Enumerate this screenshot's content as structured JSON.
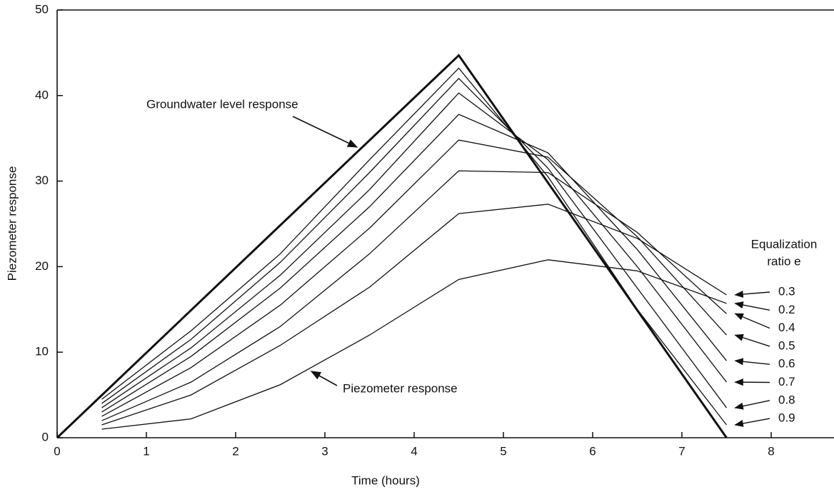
{
  "chart_data": {
    "type": "line",
    "x_label": "Time (hours)",
    "y_label": "Piezometer response",
    "xlim": [
      0,
      8.7
    ],
    "ylim": [
      0,
      50
    ],
    "xticks": [
      0,
      1,
      2,
      3,
      4,
      5,
      6,
      7,
      8
    ],
    "yticks": [
      0,
      10,
      20,
      30,
      40,
      50
    ],
    "grid": false,
    "reference": {
      "name": "Groundwater level response",
      "color": "#111111",
      "x": [
        0,
        4.5,
        7.5
      ],
      "values": [
        0,
        44.7,
        0
      ]
    },
    "annotation": "Piezometer response",
    "legend_title": [
      "Equalization",
      "ratio e"
    ],
    "x": [
      0.5,
      1.5,
      2.5,
      3.5,
      4.5,
      5.5,
      6.5,
      7.5
    ],
    "series": [
      {
        "name": "0.3",
        "color": "#111111",
        "values": [
          1.5,
          5,
          10.8,
          17.6,
          26.2,
          27.3,
          23.3,
          16.7
        ]
      },
      {
        "name": "0.2",
        "color": "#111111",
        "values": [
          1,
          2.2,
          6.2,
          12,
          18.5,
          20.8,
          19.5,
          15.7
        ]
      },
      {
        "name": "0.4",
        "color": "#111111",
        "values": [
          2,
          6.5,
          13,
          21.5,
          31.2,
          31,
          24,
          14.5
        ]
      },
      {
        "name": "0.5",
        "color": "#111111",
        "values": [
          2.5,
          8.2,
          15.5,
          24.5,
          34.8,
          32.8,
          23.5,
          12
        ]
      },
      {
        "name": "0.6",
        "color": "#111111",
        "values": [
          3,
          9.5,
          17.5,
          27,
          37.8,
          33.3,
          22,
          9
        ]
      },
      {
        "name": "0.7",
        "color": "#111111",
        "values": [
          3.5,
          10.5,
          19,
          29,
          40.3,
          32.5,
          20,
          6.5
        ]
      },
      {
        "name": "0.8",
        "color": "#111111",
        "values": [
          4,
          11.5,
          20.5,
          31,
          42,
          31.5,
          17.5,
          3.5
        ]
      },
      {
        "name": "0.9",
        "color": "#111111",
        "values": [
          4.5,
          12.5,
          21.5,
          32.5,
          43.2,
          30.5,
          15,
          1.5
        ]
      }
    ]
  }
}
